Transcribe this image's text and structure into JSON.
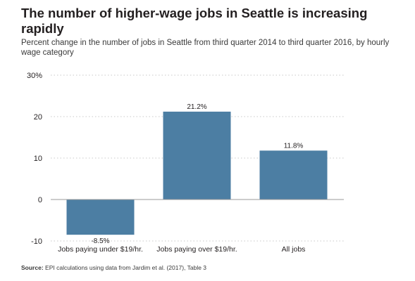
{
  "header": {
    "title": "The number of higher-wage jobs in Seattle is increasing rapidly",
    "subtitle": "Percent change in the number of jobs in Seattle from third quarter 2014 to third quarter 2016, by hourly wage category"
  },
  "footer": {
    "source_label": "Source:",
    "source_text": "EPI calculations using data from Jardim et al. (2017), Table 3"
  },
  "colors": {
    "bar": "#4c7ea3",
    "grid": "#c8c8c8",
    "zero_line": "#9a9a9a"
  },
  "chart_data": {
    "type": "bar",
    "title": "The number of higher-wage jobs in Seattle is increasing rapidly",
    "subtitle": "Percent change in the number of jobs in Seattle from third quarter 2014 to third quarter 2016, by hourly wage category",
    "xlabel": "",
    "ylabel": "",
    "categories": [
      "Jobs paying under $19/hr.",
      "Jobs paying over $19/hr.",
      "All jobs"
    ],
    "values": [
      -8.5,
      21.2,
      11.8
    ],
    "value_labels": [
      "-8.5%",
      "21.2%",
      "11.8%"
    ],
    "ylim": [
      -10,
      30
    ],
    "yticks": [
      -10,
      0,
      10,
      20,
      30
    ],
    "ytick_labels": [
      "-10",
      "0",
      "10",
      "20",
      "30%"
    ],
    "grid": true,
    "legend": "none"
  }
}
